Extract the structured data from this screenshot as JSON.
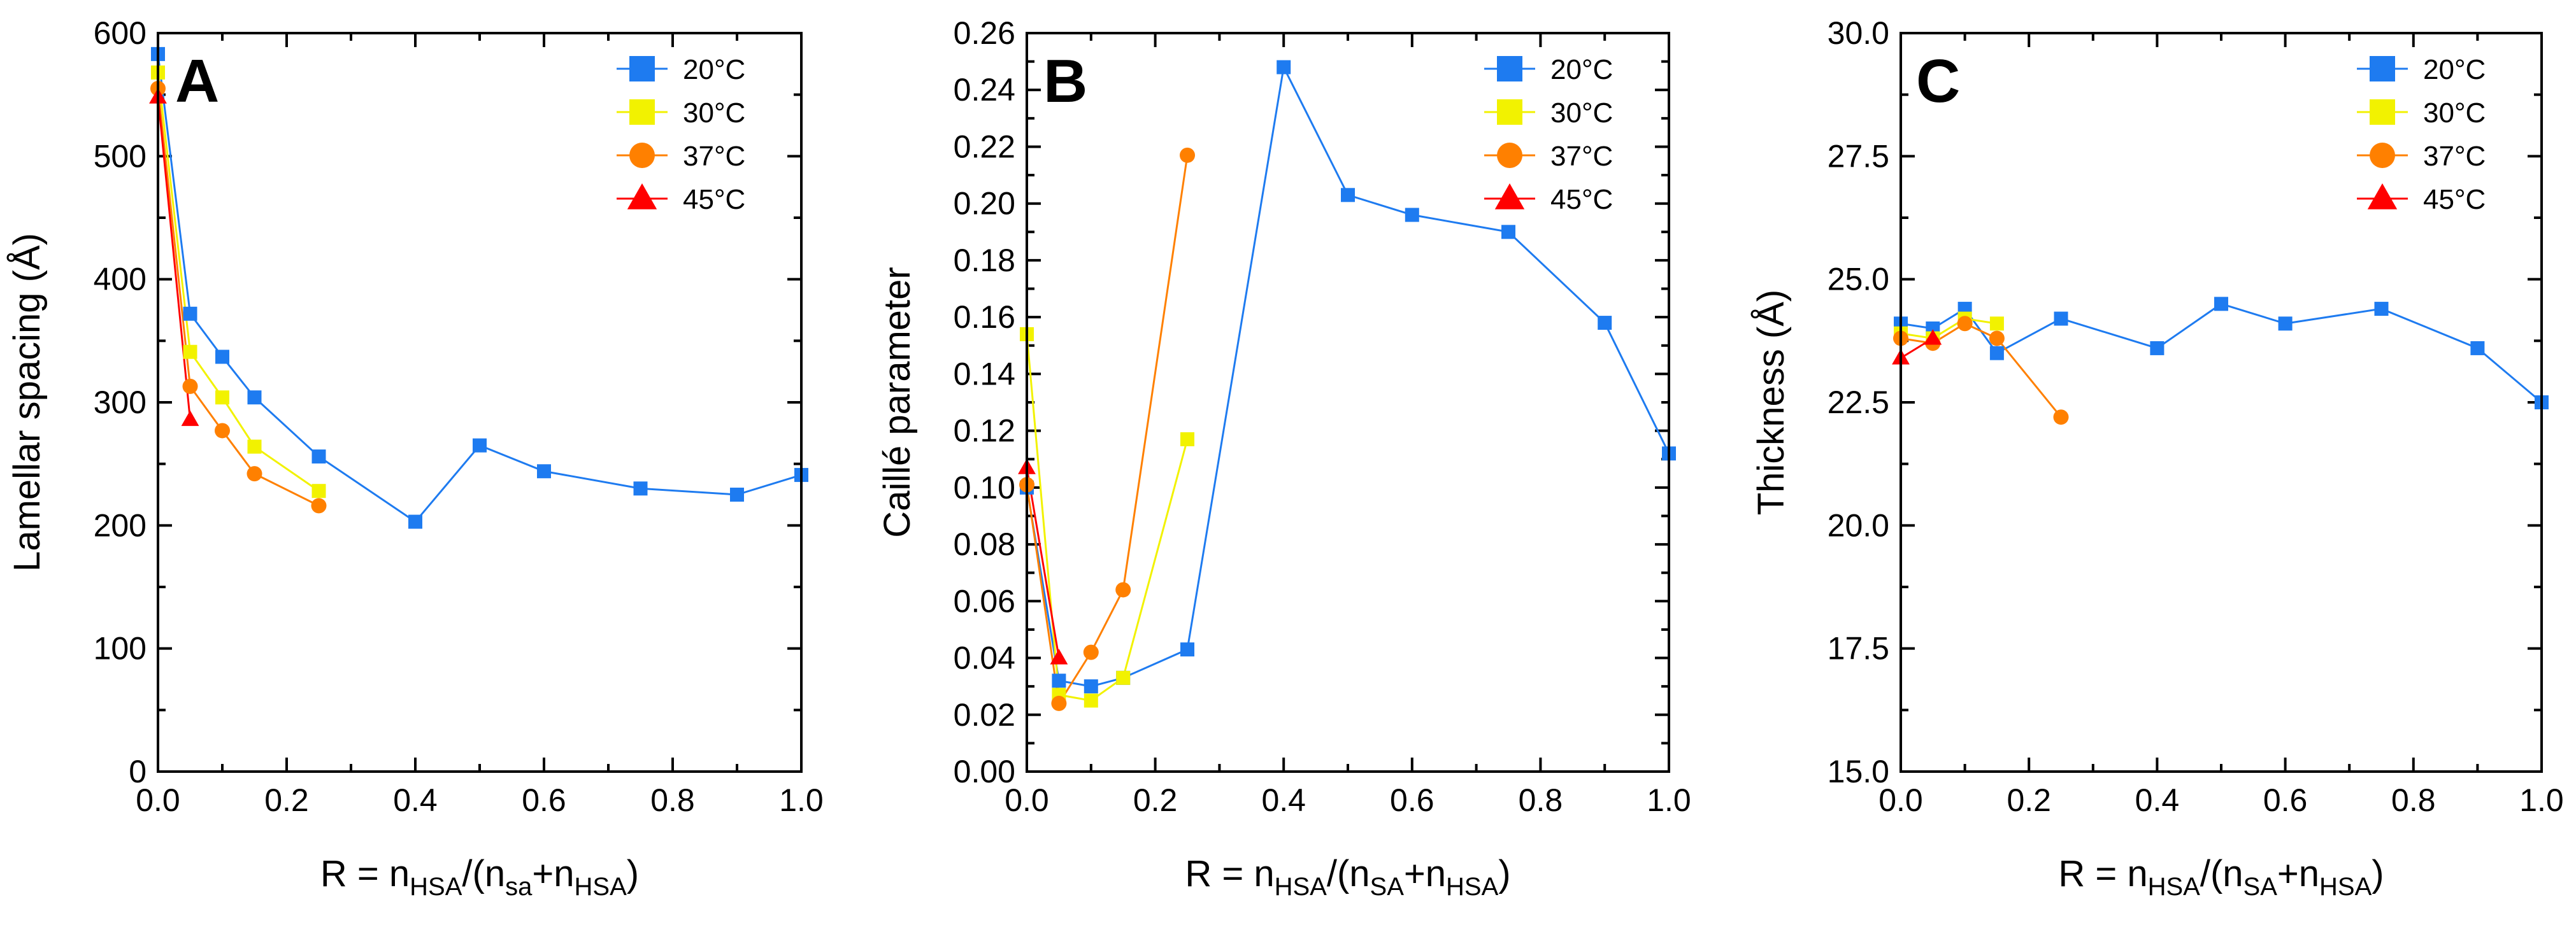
{
  "colors": {
    "20": "#1e7bf0",
    "30": "#f2f200",
    "37": "#ff8000",
    "45": "#ff0000"
  },
  "chart_data": [
    {
      "type": "line",
      "panel": "A",
      "title": "",
      "xlabel": "R = n_HSA/(n_sa+n_HSA)",
      "xlabel_parts": {
        "prefix": "R = n",
        "sub1": "HSA",
        "mid": "/(n",
        "sub2": "sa",
        "plus": "+n",
        "sub3": "HSA",
        "suffix": ")"
      },
      "ylabel": "Lamellar spacing (Å)",
      "xlim": [
        0.0,
        1.0
      ],
      "ylim": [
        0,
        600
      ],
      "xticks": [
        "0.0",
        "0.2",
        "0.4",
        "0.6",
        "0.8",
        "1.0"
      ],
      "yticks": [
        "0",
        "100",
        "200",
        "300",
        "400",
        "500",
        "600"
      ],
      "legend_position": "top-right",
      "series": [
        {
          "name": "20°C",
          "marker": "square",
          "color_key": "20",
          "x": [
            0.0,
            0.05,
            0.1,
            0.15,
            0.25,
            0.4,
            0.5,
            0.6,
            0.75,
            0.9,
            1.0
          ],
          "y": [
            583,
            372,
            337,
            304,
            256,
            203,
            265,
            244,
            230,
            225,
            241
          ]
        },
        {
          "name": "30°C",
          "marker": "square",
          "color_key": "30",
          "x": [
            0.0,
            0.05,
            0.1,
            0.15,
            0.25
          ],
          "y": [
            568,
            341,
            304,
            264,
            228
          ]
        },
        {
          "name": "37°C",
          "marker": "circle",
          "color_key": "37",
          "x": [
            0.0,
            0.05,
            0.1,
            0.15,
            0.25
          ],
          "y": [
            555,
            313,
            277,
            242,
            216
          ]
        },
        {
          "name": "45°C",
          "marker": "triangle",
          "color_key": "45",
          "x": [
            0.0,
            0.05
          ],
          "y": [
            548,
            286
          ]
        }
      ]
    },
    {
      "type": "line",
      "panel": "B",
      "title": "",
      "xlabel": "R = n_HSA/(n_SA+n_HSA)",
      "xlabel_parts": {
        "prefix": "R = n",
        "sub1": "HSA",
        "mid": "/(n",
        "sub2": "SA",
        "plus": "+n",
        "sub3": "HSA",
        "suffix": ")"
      },
      "ylabel": "Caillé parameter",
      "xlim": [
        0.0,
        1.0
      ],
      "ylim": [
        0.0,
        0.26
      ],
      "xticks": [
        "0.0",
        "0.2",
        "0.4",
        "0.6",
        "0.8",
        "1.0"
      ],
      "yticks": [
        "0.00",
        "0.02",
        "0.04",
        "0.06",
        "0.08",
        "0.10",
        "0.12",
        "0.14",
        "0.16",
        "0.18",
        "0.20",
        "0.22",
        "0.24",
        "0.26"
      ],
      "legend_position": "top-right",
      "series": [
        {
          "name": "20°C",
          "marker": "square",
          "color_key": "20",
          "x": [
            0.0,
            0.05,
            0.1,
            0.15,
            0.25,
            0.4,
            0.5,
            0.6,
            0.75,
            0.9,
            1.0
          ],
          "y": [
            0.1,
            0.032,
            0.03,
            0.033,
            0.043,
            0.248,
            0.203,
            0.196,
            0.19,
            0.158,
            0.112
          ]
        },
        {
          "name": "30°C",
          "marker": "square",
          "color_key": "30",
          "x": [
            0.0,
            0.05,
            0.1,
            0.15,
            0.25
          ],
          "y": [
            0.154,
            0.027,
            0.025,
            0.033,
            0.117
          ]
        },
        {
          "name": "37°C",
          "marker": "circle",
          "color_key": "37",
          "x": [
            0.0,
            0.05,
            0.1,
            0.15,
            0.25
          ],
          "y": [
            0.101,
            0.024,
            0.042,
            0.064,
            0.217
          ]
        },
        {
          "name": "45°C",
          "marker": "triangle",
          "color_key": "45",
          "x": [
            0.0,
            0.05
          ],
          "y": [
            0.107,
            0.04
          ]
        }
      ]
    },
    {
      "type": "line",
      "panel": "C",
      "title": "",
      "xlabel": "R = n_HSA/(n_SA+n_HSA)",
      "xlabel_parts": {
        "prefix": "R = n",
        "sub1": "HSA",
        "mid": "/(n",
        "sub2": "SA",
        "plus": "+n",
        "sub3": "HSA",
        "suffix": ")"
      },
      "ylabel": "Thickness (Å)",
      "xlim": [
        0.0,
        1.0
      ],
      "ylim": [
        15.0,
        30.0
      ],
      "xticks": [
        "0.0",
        "0.2",
        "0.4",
        "0.6",
        "0.8",
        "1.0"
      ],
      "yticks": [
        "15.0",
        "17.5",
        "20.0",
        "22.5",
        "25.0",
        "27.5",
        "30.0"
      ],
      "legend_position": "top-right",
      "series": [
        {
          "name": "20°C",
          "marker": "square",
          "color_key": "20",
          "x": [
            0.0,
            0.05,
            0.1,
            0.15,
            0.25,
            0.4,
            0.5,
            0.6,
            0.75,
            0.9,
            1.0
          ],
          "y": [
            24.1,
            24.0,
            24.4,
            23.5,
            24.2,
            23.6,
            24.5,
            24.1,
            24.4,
            23.6,
            22.5
          ]
        },
        {
          "name": "30°C",
          "marker": "square",
          "color_key": "30",
          "x": [
            0.0,
            0.05,
            0.1,
            0.15
          ],
          "y": [
            23.9,
            23.8,
            24.2,
            24.1
          ]
        },
        {
          "name": "37°C",
          "marker": "circle",
          "color_key": "37",
          "x": [
            0.0,
            0.05,
            0.1,
            0.15,
            0.25
          ],
          "y": [
            23.8,
            23.7,
            24.1,
            23.8,
            22.2
          ]
        },
        {
          "name": "45°C",
          "marker": "triangle",
          "color_key": "45",
          "x": [
            0.0,
            0.05
          ],
          "y": [
            23.4,
            23.8
          ]
        }
      ]
    }
  ]
}
